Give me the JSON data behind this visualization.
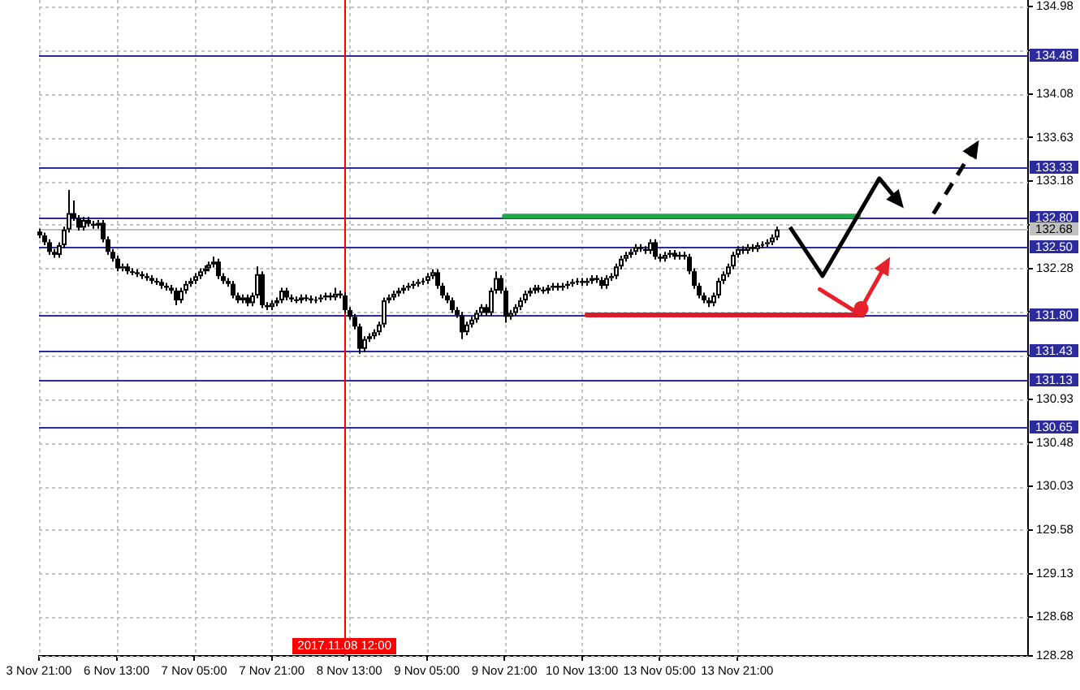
{
  "chart_data": {
    "type": "candlestick",
    "categories": [
      "3 Nov 21:00",
      null,
      null,
      null,
      null,
      null,
      null,
      null,
      null,
      null,
      null,
      null,
      null,
      null,
      null,
      null,
      "6 Nov 13:00",
      null,
      null,
      null,
      null,
      null,
      null,
      null,
      null,
      null,
      null,
      null,
      null,
      null,
      null,
      null,
      "7 Nov 05:00",
      null,
      null,
      null,
      null,
      null,
      null,
      null,
      null,
      null,
      null,
      null,
      null,
      null,
      null,
      null,
      "7 Nov 21:00",
      null,
      null,
      null,
      null,
      null,
      null,
      null,
      null,
      null,
      null,
      null,
      null,
      null,
      null,
      "2017.11.08 12:00",
      "8 Nov 13:00",
      null,
      null,
      null,
      null,
      null,
      null,
      null,
      null,
      null,
      null,
      null,
      null,
      null,
      null,
      null,
      "9 Nov 05:00",
      null,
      null,
      null,
      null,
      null,
      null,
      null,
      null,
      null,
      null,
      null,
      null,
      null,
      null,
      null,
      "9 Nov 21:00",
      null,
      null,
      null,
      null,
      null,
      null,
      null,
      null,
      null,
      null,
      null,
      null,
      null,
      null,
      null,
      "10 Nov 13:00",
      null,
      null,
      null,
      null,
      null,
      null,
      null,
      null,
      null,
      null,
      null,
      null,
      null,
      null,
      null,
      "13 Nov 05:00",
      null,
      null,
      null,
      null,
      null,
      null,
      null,
      null,
      null,
      null,
      null,
      null,
      null,
      null,
      null,
      "13 Nov 21:00",
      null,
      null,
      null,
      null,
      null,
      null,
      null,
      null,
      null,
      null,
      null,
      null,
      null,
      null,
      null,
      null,
      null,
      null,
      null,
      null,
      null,
      null,
      null,
      null,
      null,
      null,
      null,
      null,
      null,
      null,
      null,
      null,
      null,
      null,
      null,
      null,
      null,
      null,
      null,
      null,
      null,
      null,
      null,
      null,
      null,
      null,
      null,
      null,
      null,
      null,
      null,
      null,
      null,
      null,
      null,
      null,
      null,
      null,
      null,
      null
    ],
    "ohlc": [
      [
        132.66,
        132.69,
        132.59,
        132.62
      ],
      [
        132.62,
        132.65,
        132.52,
        132.55
      ],
      [
        132.55,
        132.58,
        132.42,
        132.45
      ],
      [
        132.45,
        132.48,
        132.39,
        132.42
      ],
      [
        132.42,
        132.55,
        132.39,
        132.52
      ],
      [
        132.52,
        132.71,
        132.49,
        132.68
      ],
      [
        132.68,
        133.09,
        132.65,
        132.85
      ],
      [
        132.85,
        132.98,
        132.77,
        132.8
      ],
      [
        132.8,
        132.83,
        132.67,
        132.7
      ],
      [
        132.7,
        132.81,
        132.67,
        132.78
      ],
      [
        132.78,
        132.81,
        132.71,
        132.74
      ],
      [
        132.74,
        132.77,
        132.69,
        132.72
      ],
      [
        132.72,
        132.78,
        132.69,
        132.75
      ],
      [
        132.75,
        132.78,
        132.55,
        132.58
      ],
      [
        132.58,
        132.61,
        132.42,
        132.45
      ],
      [
        132.45,
        132.48,
        132.35,
        132.38
      ],
      [
        132.38,
        132.41,
        132.25,
        132.28
      ],
      [
        132.28,
        132.33,
        132.25,
        132.3
      ],
      [
        132.3,
        132.33,
        132.22,
        132.25
      ],
      [
        132.25,
        132.28,
        132.21,
        132.24
      ],
      [
        132.24,
        132.27,
        132.19,
        132.22
      ],
      [
        132.22,
        132.25,
        132.17,
        132.2
      ],
      [
        132.2,
        132.23,
        132.15,
        132.18
      ],
      [
        132.18,
        132.21,
        132.12,
        132.15
      ],
      [
        132.15,
        132.18,
        132.11,
        132.14
      ],
      [
        132.14,
        132.17,
        132.07,
        132.1
      ],
      [
        132.1,
        132.13,
        132.05,
        132.08
      ],
      [
        132.08,
        132.11,
        132.02,
        132.05
      ],
      [
        132.05,
        132.08,
        131.9,
        131.95
      ],
      [
        131.95,
        132.08,
        131.92,
        132.05
      ],
      [
        132.05,
        132.15,
        132.02,
        132.12
      ],
      [
        132.12,
        132.18,
        132.09,
        132.15
      ],
      [
        132.15,
        132.23,
        132.12,
        132.2
      ],
      [
        132.2,
        132.28,
        132.17,
        132.25
      ],
      [
        132.25,
        132.31,
        132.22,
        132.28
      ],
      [
        132.28,
        132.35,
        132.25,
        132.32
      ],
      [
        132.32,
        132.4,
        132.29,
        132.35
      ],
      [
        132.35,
        132.38,
        132.17,
        132.2
      ],
      [
        132.2,
        132.23,
        132.12,
        132.15
      ],
      [
        132.15,
        132.18,
        132.09,
        132.12
      ],
      [
        132.12,
        132.15,
        131.97,
        132
      ],
      [
        132,
        132.03,
        131.92,
        131.95
      ],
      [
        131.95,
        132.01,
        131.92,
        131.98
      ],
      [
        131.98,
        132.01,
        131.89,
        131.92
      ],
      [
        131.92,
        132.03,
        131.89,
        132
      ],
      [
        132,
        132.3,
        131.97,
        132.22
      ],
      [
        132.22,
        132.25,
        131.87,
        131.9
      ],
      [
        131.9,
        131.93,
        131.85,
        131.88
      ],
      [
        131.88,
        131.95,
        131.85,
        131.92
      ],
      [
        131.92,
        131.98,
        131.89,
        131.95
      ],
      [
        131.95,
        132.08,
        131.92,
        132.05
      ],
      [
        132.05,
        132.08,
        131.95,
        131.98
      ],
      [
        131.98,
        132.01,
        131.93,
        131.96
      ],
      [
        131.96,
        131.99,
        131.92,
        131.95
      ],
      [
        131.95,
        132.01,
        131.92,
        131.98
      ],
      [
        131.98,
        132.01,
        131.94,
        131.97
      ],
      [
        131.97,
        132,
        131.92,
        131.95
      ],
      [
        131.95,
        131.99,
        131.92,
        131.96
      ],
      [
        131.96,
        132.01,
        131.93,
        131.98
      ],
      [
        131.98,
        132.03,
        131.95,
        132
      ],
      [
        132,
        132.03,
        131.95,
        131.98
      ],
      [
        131.98,
        132.08,
        131.95,
        132.02
      ],
      [
        132.02,
        132.05,
        131.97,
        132
      ],
      [
        132,
        132.03,
        131.82,
        131.85
      ],
      [
        131.85,
        131.88,
        131.75,
        131.78
      ],
      [
        131.78,
        131.81,
        131.65,
        131.68
      ],
      [
        131.68,
        131.71,
        131.4,
        131.45
      ],
      [
        131.45,
        131.58,
        131.42,
        131.55
      ],
      [
        131.55,
        131.61,
        131.52,
        131.58
      ],
      [
        131.58,
        131.65,
        131.55,
        131.62
      ],
      [
        131.62,
        131.73,
        131.59,
        131.7
      ],
      [
        131.7,
        131.98,
        131.67,
        131.95
      ],
      [
        131.95,
        132.01,
        131.92,
        131.98
      ],
      [
        131.98,
        132.05,
        131.95,
        132.02
      ],
      [
        132.02,
        132.08,
        131.99,
        132.05
      ],
      [
        132.05,
        132.11,
        132.02,
        132.08
      ],
      [
        132.08,
        132.13,
        132.05,
        132.1
      ],
      [
        132.1,
        132.15,
        132.07,
        132.12
      ],
      [
        132.12,
        132.17,
        132.09,
        132.14
      ],
      [
        132.14,
        132.18,
        132.11,
        132.15
      ],
      [
        132.15,
        132.23,
        132.12,
        132.2
      ],
      [
        132.2,
        132.27,
        132.17,
        132.24
      ],
      [
        132.24,
        132.27,
        132.07,
        132.1
      ],
      [
        132.1,
        132.13,
        131.97,
        132
      ],
      [
        132,
        132.03,
        131.92,
        131.95
      ],
      [
        131.95,
        131.98,
        131.82,
        131.85
      ],
      [
        131.85,
        131.88,
        131.77,
        131.8
      ],
      [
        131.8,
        131.83,
        131.55,
        131.62
      ],
      [
        131.62,
        131.73,
        131.59,
        131.7
      ],
      [
        131.7,
        131.78,
        131.67,
        131.75
      ],
      [
        131.75,
        131.85,
        131.72,
        131.82
      ],
      [
        131.82,
        131.91,
        131.79,
        131.88
      ],
      [
        131.88,
        131.91,
        131.79,
        131.82
      ],
      [
        131.82,
        132.08,
        131.79,
        132.05
      ],
      [
        132.05,
        132.25,
        132.02,
        132.18
      ],
      [
        132.18,
        132.21,
        132.02,
        132.05
      ],
      [
        132.05,
        132.08,
        131.72,
        131.78
      ],
      [
        131.78,
        131.85,
        131.75,
        131.82
      ],
      [
        131.82,
        131.91,
        131.79,
        131.88
      ],
      [
        131.88,
        131.98,
        131.85,
        131.95
      ],
      [
        131.95,
        132.05,
        131.92,
        132.02
      ],
      [
        132.02,
        132.08,
        131.99,
        132.05
      ],
      [
        132.05,
        132.11,
        132.02,
        132.08
      ],
      [
        132.08,
        132.11,
        132.03,
        132.06
      ],
      [
        132.06,
        132.09,
        132.02,
        132.05
      ],
      [
        132.05,
        132.11,
        132.02,
        132.08
      ],
      [
        132.08,
        132.13,
        132.05,
        132.1
      ],
      [
        132.1,
        132.13,
        132.05,
        132.08
      ],
      [
        132.08,
        132.13,
        132.05,
        132.1
      ],
      [
        132.1,
        132.15,
        132.07,
        132.12
      ],
      [
        132.12,
        132.17,
        132.09,
        132.14
      ],
      [
        132.14,
        132.18,
        132.11,
        132.15
      ],
      [
        132.15,
        132.18,
        132.1,
        132.13
      ],
      [
        132.13,
        132.18,
        132.1,
        132.15
      ],
      [
        132.15,
        132.21,
        132.12,
        132.18
      ],
      [
        132.18,
        132.21,
        132.13,
        132.16
      ],
      [
        132.16,
        132.19,
        132.07,
        132.1
      ],
      [
        132.1,
        132.21,
        132.07,
        132.18
      ],
      [
        132.18,
        132.23,
        132.15,
        132.2
      ],
      [
        132.2,
        132.33,
        132.17,
        132.3
      ],
      [
        132.3,
        132.41,
        132.27,
        132.38
      ],
      [
        132.38,
        132.45,
        132.35,
        132.42
      ],
      [
        132.42,
        132.48,
        132.39,
        132.45
      ],
      [
        132.45,
        132.53,
        132.42,
        132.5
      ],
      [
        132.5,
        132.53,
        132.45,
        132.48
      ],
      [
        132.48,
        132.51,
        132.43,
        132.46
      ],
      [
        132.46,
        132.58,
        132.43,
        132.55
      ],
      [
        132.55,
        132.58,
        132.37,
        132.4
      ],
      [
        132.4,
        132.43,
        132.35,
        132.38
      ],
      [
        132.38,
        132.45,
        132.35,
        132.42
      ],
      [
        132.42,
        132.47,
        132.39,
        132.44
      ],
      [
        132.44,
        132.47,
        132.37,
        132.4
      ],
      [
        132.4,
        132.45,
        132.37,
        132.42
      ],
      [
        132.42,
        132.45,
        132.37,
        132.4
      ],
      [
        132.4,
        132.43,
        132.22,
        132.25
      ],
      [
        132.25,
        132.28,
        132.07,
        132.1
      ],
      [
        132.1,
        132.13,
        131.97,
        132
      ],
      [
        132,
        132.03,
        131.92,
        131.95
      ],
      [
        131.95,
        131.98,
        131.88,
        131.92
      ],
      [
        131.92,
        132.03,
        131.89,
        132
      ],
      [
        132,
        132.18,
        131.97,
        132.15
      ],
      [
        132.15,
        132.25,
        132.12,
        132.22
      ],
      [
        132.22,
        132.33,
        132.19,
        132.3
      ],
      [
        132.3,
        132.45,
        132.27,
        132.42
      ],
      [
        132.42,
        132.51,
        132.39,
        132.48
      ],
      [
        132.48,
        132.51,
        132.43,
        132.46
      ],
      [
        132.46,
        132.53,
        132.43,
        132.5
      ],
      [
        132.5,
        132.53,
        132.45,
        132.48
      ],
      [
        132.48,
        132.55,
        132.45,
        132.52
      ],
      [
        132.52,
        132.56,
        132.49,
        132.53
      ],
      [
        132.53,
        132.58,
        132.5,
        132.55
      ],
      [
        132.55,
        132.63,
        132.52,
        132.6
      ],
      [
        132.6,
        132.71,
        132.57,
        132.68
      ],
      null,
      null,
      null,
      null,
      null,
      null,
      null,
      null,
      null,
      null,
      null,
      null,
      null,
      null,
      null,
      null,
      null,
      null,
      null,
      null,
      null,
      null,
      null,
      null,
      null,
      null,
      null,
      null,
      null,
      null,
      null,
      null,
      null,
      null,
      null,
      null,
      null,
      null,
      null,
      null,
      null,
      null,
      null,
      null,
      null,
      null,
      null,
      null,
      null,
      null,
      null,
      null
    ],
    "series": [
      {
        "type": "line",
        "color": "#22a84a",
        "values": [
          null,
          null,
          null,
          null,
          null,
          null,
          null,
          null,
          null,
          null,
          null,
          null,
          null,
          null,
          null,
          null,
          null,
          null,
          null,
          null,
          null,
          null,
          null,
          null,
          null,
          null,
          null,
          null,
          null,
          null,
          null,
          null,
          null,
          null,
          null,
          null,
          null,
          null,
          null,
          null,
          null,
          null,
          null,
          null,
          null,
          null,
          null,
          null,
          null,
          null,
          null,
          null,
          null,
          null,
          null,
          null,
          null,
          null,
          null,
          null,
          null,
          null,
          null,
          null,
          null,
          null,
          null,
          null,
          null,
          null,
          null,
          null,
          null,
          null,
          null,
          null,
          null,
          null,
          null,
          null,
          null,
          null,
          null,
          null,
          null,
          null,
          null,
          null,
          null,
          null,
          null,
          null,
          null,
          null,
          null,
          null,
          132.82,
          132.82,
          132.82,
          132.82,
          132.82,
          132.82,
          132.82,
          132.82,
          132.82,
          132.82,
          132.82,
          132.82,
          132.82,
          132.82,
          132.82,
          132.82,
          132.82,
          132.82,
          132.82,
          132.82,
          132.82,
          132.82,
          132.82,
          132.82,
          132.82,
          132.82,
          132.82,
          132.82,
          132.82,
          132.82,
          132.82,
          132.82,
          132.82,
          132.82,
          132.82,
          132.82,
          132.82,
          132.82,
          132.82,
          132.82,
          132.82,
          132.82,
          132.82,
          132.82,
          132.82,
          132.82,
          132.82,
          132.82,
          132.82,
          132.82,
          132.82,
          132.82,
          132.82,
          132.82,
          132.82,
          132.82,
          132.82,
          132.82,
          132.82,
          132.82,
          132.82,
          132.82,
          132.82,
          132.82,
          132.82,
          132.82,
          132.82,
          132.82,
          132.82,
          132.82,
          132.82,
          132.82,
          132.82,
          132.82,
          null,
          null,
          null,
          null,
          null,
          null,
          null,
          null,
          null,
          null,
          null,
          null,
          null,
          null,
          null,
          null,
          null,
          null,
          null,
          null,
          null,
          null,
          null,
          null,
          null,
          null,
          null,
          null,
          null,
          null,
          null,
          null,
          null,
          null,
          null
        ]
      },
      {
        "type": "line",
        "color": "#d81e2c",
        "values": [
          null,
          null,
          null,
          null,
          null,
          null,
          null,
          null,
          null,
          null,
          null,
          null,
          null,
          null,
          null,
          null,
          null,
          null,
          null,
          null,
          null,
          null,
          null,
          null,
          null,
          null,
          null,
          null,
          null,
          null,
          null,
          null,
          null,
          null,
          null,
          null,
          null,
          null,
          null,
          null,
          null,
          null,
          null,
          null,
          null,
          null,
          null,
          null,
          null,
          null,
          null,
          null,
          null,
          null,
          null,
          null,
          null,
          null,
          null,
          null,
          null,
          null,
          null,
          null,
          null,
          null,
          null,
          null,
          null,
          null,
          null,
          null,
          null,
          null,
          null,
          null,
          null,
          null,
          null,
          null,
          null,
          null,
          null,
          null,
          null,
          null,
          null,
          null,
          null,
          null,
          null,
          null,
          null,
          null,
          null,
          null,
          null,
          null,
          null,
          null,
          null,
          null,
          null,
          null,
          null,
          null,
          null,
          null,
          null,
          null,
          null,
          null,
          null,
          131.8,
          131.8,
          131.8,
          131.8,
          131.8,
          131.8,
          131.8,
          131.8,
          131.8,
          131.8,
          131.8,
          131.8,
          131.8,
          131.8,
          131.8,
          131.8,
          131.8,
          131.8,
          131.8,
          131.8,
          131.8,
          131.8,
          131.8,
          131.8,
          131.8,
          131.8,
          131.8,
          131.8,
          131.8,
          131.8,
          131.8,
          131.8,
          131.8,
          131.8,
          131.8,
          131.8,
          131.8,
          131.8,
          131.8,
          131.8,
          131.8,
          131.8,
          131.8,
          131.8,
          131.8,
          131.8,
          131.8,
          131.8,
          131.8,
          131.8,
          131.8,
          131.8,
          131.8,
          131.8,
          131.8,
          131.8,
          131.8,
          131.8,
          null,
          null,
          null,
          null,
          null,
          null,
          null,
          null,
          null,
          null,
          null,
          null,
          null,
          null,
          null,
          null,
          null,
          null,
          null,
          null,
          null,
          null,
          null,
          null,
          null,
          null,
          null,
          null,
          null,
          null,
          null,
          null,
          null,
          null
        ]
      }
    ],
    "ylim": [
      128.28,
      135.05
    ],
    "yticks": [
      128.28,
      128.68,
      129.13,
      129.58,
      130.03,
      130.48,
      130.93,
      {
        "value": 131.38,
        "label": null
      },
      {
        "value": 131.83,
        "label": null
      },
      132.28,
      {
        "value": 132.73,
        "label": null
      },
      133.18,
      133.63,
      134.08,
      {
        "value": 134.53,
        "label": null
      },
      134.98
    ],
    "ref_lines": [
      {
        "axis": "y",
        "value": 134.48,
        "label": "134.48",
        "color": "#2b2b9e"
      },
      {
        "axis": "y",
        "value": 133.33,
        "label": "133.33",
        "color": "#2b2b9e"
      },
      {
        "axis": "y",
        "value": 132.8,
        "label": "132.80",
        "color": "#2b2b9e"
      },
      {
        "axis": "y",
        "value": 132.5,
        "label": "132.50",
        "color": "#2b2b9e"
      },
      {
        "axis": "y",
        "value": 131.8,
        "label": "131.80",
        "color": "#2b2b9e"
      },
      {
        "axis": "y",
        "value": 131.43,
        "label": "131.43",
        "color": "#2b2b9e"
      },
      {
        "axis": "y",
        "value": 131.13,
        "label": "131.13",
        "color": "#2b2b9e"
      },
      {
        "axis": "y",
        "value": 130.65,
        "label": "130.65",
        "color": "#2b2b9e"
      },
      {
        "axis": "y",
        "value": 132.68,
        "label": "132.68",
        "color": "#c0c0c0"
      },
      {
        "axis": "x",
        "value": "2017.11.08 12:00",
        "color": "#ff0000"
      }
    ],
    "grid": true
  }
}
